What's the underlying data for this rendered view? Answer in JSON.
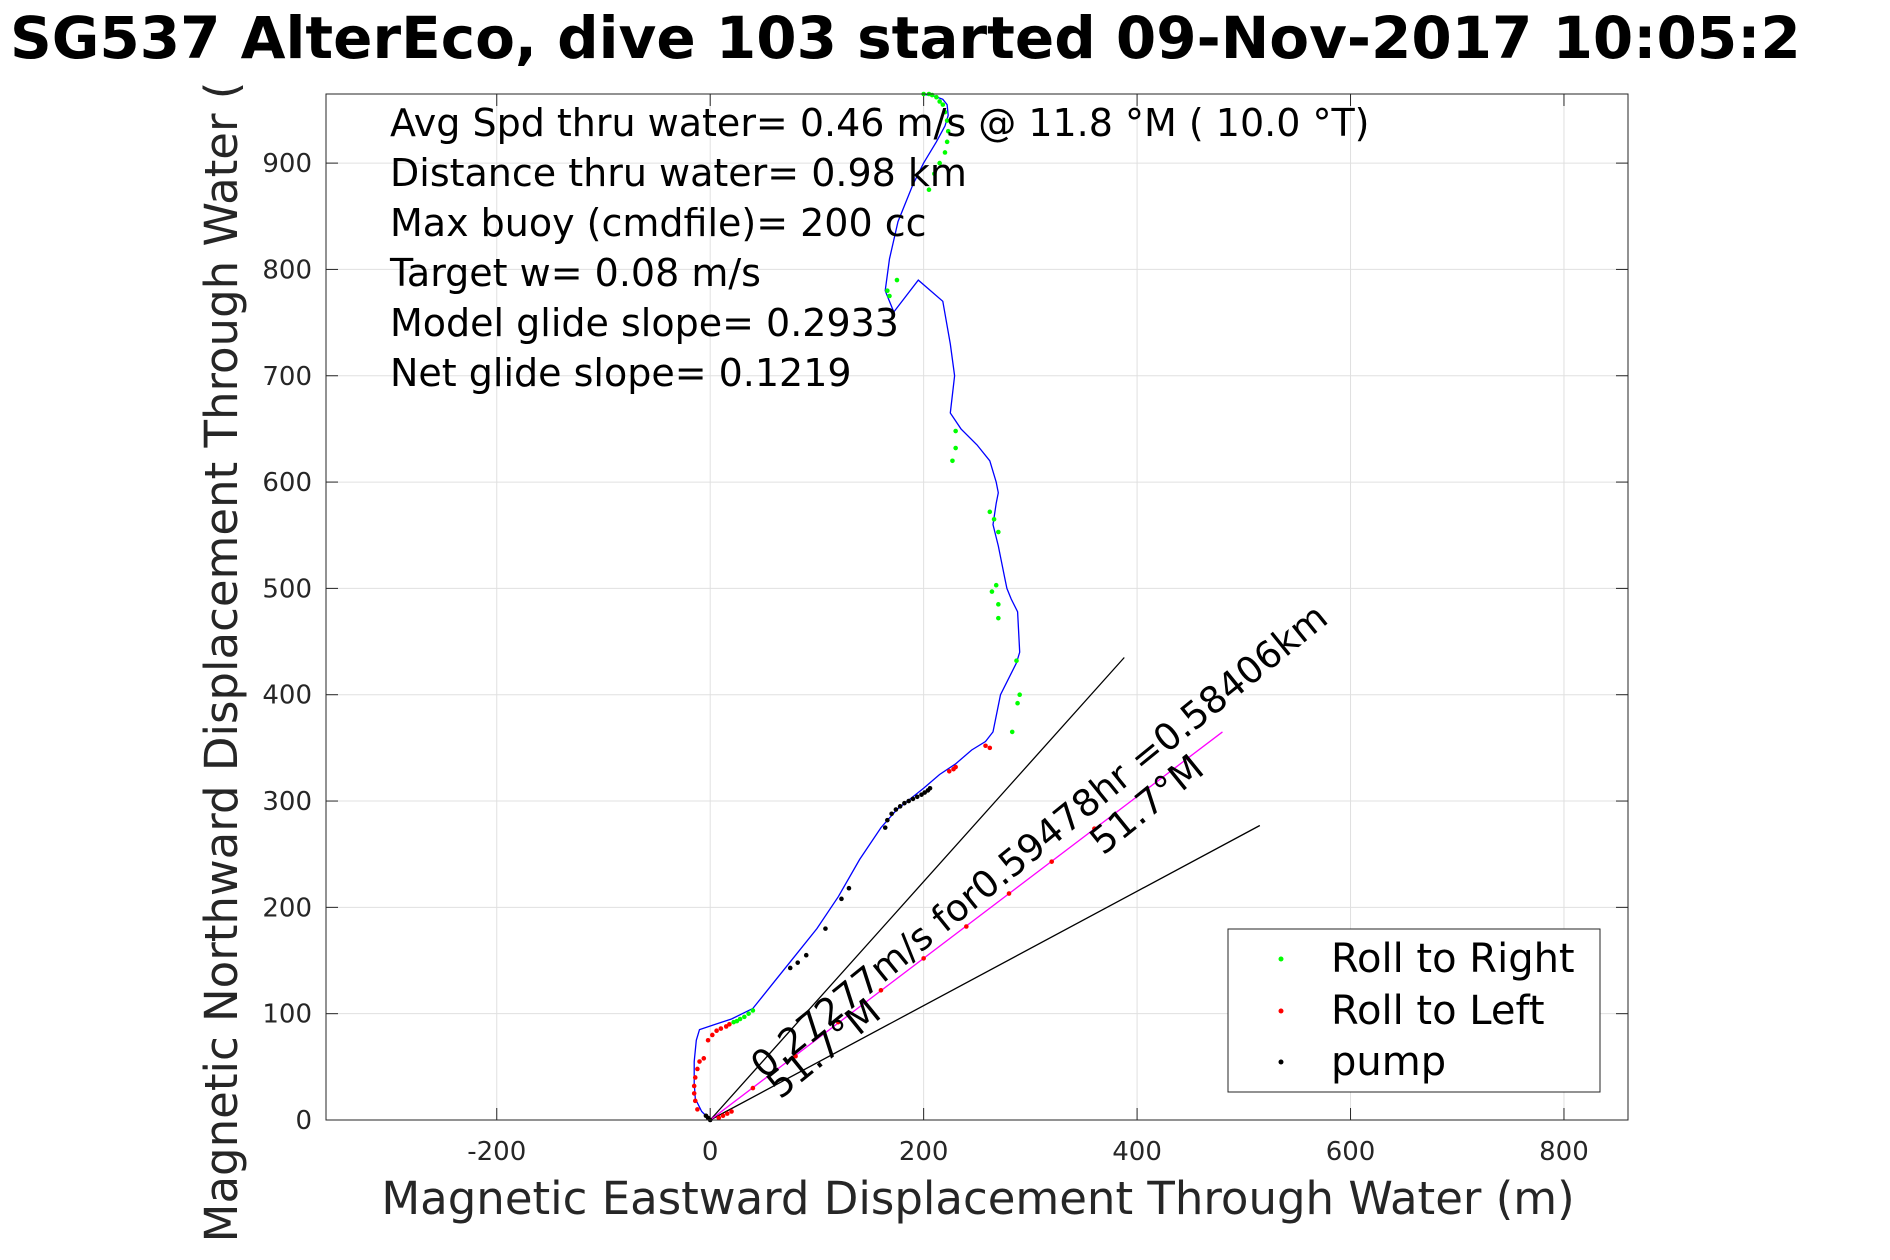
{
  "title": "SG537 AlterEco, dive 103 started 09-Nov-2017 10:05:2",
  "chart_data": {
    "type": "scatter",
    "title": "SG537 AlterEco, dive 103 started 09-Nov-2017 10:05:2",
    "xlabel": "Magnetic Eastward Displacement Through Water (m)",
    "ylabel": "Magnetic Northward Displacement Through Water (",
    "xlim": [
      -360,
      860
    ],
    "ylim": [
      0,
      965
    ],
    "xticks": [
      -200,
      0,
      200,
      400,
      600,
      800
    ],
    "yticks": [
      0,
      100,
      200,
      300,
      400,
      500,
      600,
      700,
      800,
      900
    ],
    "grid": true,
    "legend_position": "bottom-right",
    "annotations": [
      "Avg Spd thru water=  0.46 m/s @  11.8 °M ( 10.0 °T)",
      "Distance thru water=  0.98 km",
      "Max buoy (cmdfile)= 200 cc",
      "Target w= 0.08 m/s",
      "Model glide slope= 0.2933",
      "Net glide slope= 0.1219"
    ],
    "drift_label": "0.27277m/s for0.59478hr =0.58406km",
    "heading_label": "51.7°M",
    "wedge_lines": [
      {
        "x": [
          0,
          388
        ],
        "y": [
          0,
          435
        ]
      },
      {
        "x": [
          0,
          515
        ],
        "y": [
          0,
          277
        ]
      }
    ],
    "drift_line": {
      "x": [
        0,
        480
      ],
      "y": [
        0,
        365
      ]
    },
    "track": {
      "name": "track",
      "color": "#0000ff",
      "x": [
        0,
        -8,
        -14,
        -15,
        -15,
        -13,
        -10,
        5,
        20,
        40,
        60,
        80,
        100,
        120,
        140,
        160,
        175,
        185,
        200,
        215,
        230,
        245,
        258,
        265,
        272,
        287,
        290,
        288,
        282,
        278,
        276,
        270,
        265,
        268,
        270,
        268,
        262,
        250,
        235,
        225,
        229,
        225,
        218,
        195,
        172,
        164,
        168,
        176,
        190,
        200,
        212,
        220,
        223,
        222,
        218,
        210,
        198
      ],
      "y": [
        0,
        8,
        20,
        35,
        55,
        75,
        85,
        90,
        95,
        105,
        130,
        155,
        180,
        210,
        245,
        275,
        292,
        300,
        312,
        325,
        335,
        348,
        356,
        365,
        400,
        430,
        440,
        478,
        490,
        500,
        510,
        540,
        560,
        580,
        590,
        600,
        620,
        635,
        650,
        665,
        700,
        730,
        770,
        790,
        760,
        780,
        810,
        845,
        880,
        900,
        920,
        935,
        945,
        955,
        960,
        963,
        965
      ]
    },
    "series": [
      {
        "name": "Roll to Right",
        "color": "#00ff00",
        "x": [
          40,
          36,
          32,
          28,
          25,
          22,
          230,
          230,
          227,
          262,
          266,
          270,
          268,
          264,
          270,
          270,
          287,
          290,
          288,
          283,
          175,
          168,
          166,
          205,
          210,
          215,
          220,
          222,
          223,
          222,
          220,
          218,
          215,
          212,
          208,
          205,
          200
        ],
        "y": [
          103,
          100,
          97,
          95,
          93,
          92,
          648,
          632,
          620,
          572,
          565,
          553,
          503,
          497,
          485,
          472,
          432,
          400,
          392,
          365,
          790,
          775,
          780,
          875,
          890,
          900,
          910,
          920,
          930,
          940,
          948,
          955,
          958,
          962,
          964,
          965,
          965
        ]
      },
      {
        "name": "Roll to Left",
        "color": "#ff0000",
        "x": [
          -12,
          -14,
          -15,
          -15,
          -14,
          -12,
          -10,
          -6,
          -2,
          2,
          6,
          10,
          15,
          18,
          8,
          12,
          16,
          20,
          224,
          228,
          230,
          262,
          258,
          40,
          80,
          120,
          160,
          200,
          240,
          280,
          320,
          360
        ],
        "y": [
          10,
          18,
          25,
          32,
          40,
          48,
          55,
          58,
          75,
          80,
          84,
          86,
          88,
          90,
          2,
          4,
          6,
          8,
          328,
          330,
          332,
          350,
          352,
          30,
          60,
          92,
          122,
          152,
          182,
          213,
          243,
          274
        ]
      },
      {
        "name": "pump",
        "color": "#000000",
        "x": [
          -4,
          -2,
          0,
          164,
          166,
          170,
          174,
          178,
          182,
          186,
          190,
          194,
          198,
          201,
          204,
          206,
          123,
          130,
          90,
          82,
          75,
          108
        ],
        "y": [
          4,
          2,
          0,
          275,
          282,
          288,
          292,
          295,
          298,
          300,
          302,
          304,
          306,
          308,
          310,
          312,
          208,
          218,
          155,
          148,
          143,
          180
        ]
      }
    ]
  }
}
